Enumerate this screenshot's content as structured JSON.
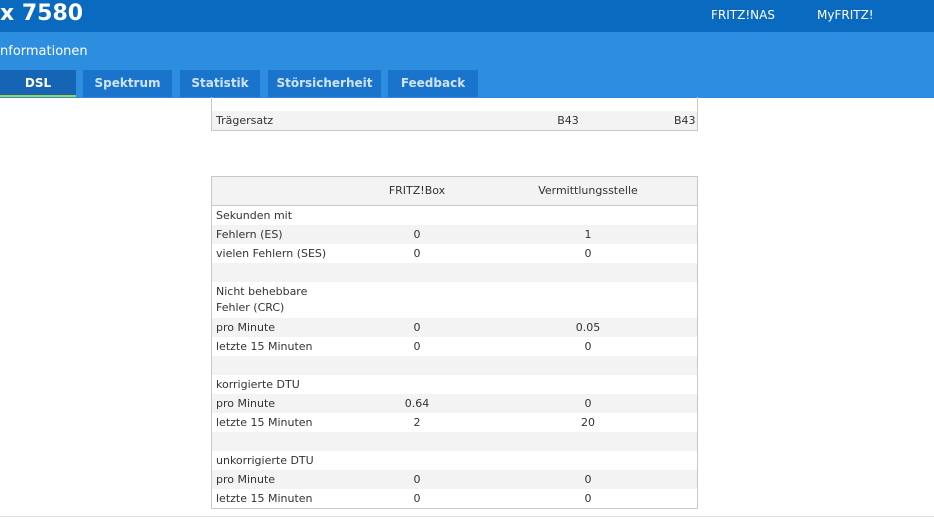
{
  "header": {
    "title": "x 7580",
    "links": [
      "FRITZ!NAS",
      "MyFRITZ!"
    ]
  },
  "subheader": {
    "title": "nformationen"
  },
  "tabs": {
    "items": [
      "DSL",
      "Spektrum",
      "Statistik",
      "Störsicherheit",
      "Feedback"
    ],
    "active": 0
  },
  "table_top": {
    "rows": [
      {
        "label": "Trägersatz",
        "fritzbox": "B43",
        "vst": "B43"
      }
    ]
  },
  "table": {
    "columns": [
      "FRITZ!Box",
      "Vermittlungsstelle"
    ],
    "rows": [
      {
        "label": "Sekunden mit"
      },
      {
        "label": "Fehlern (ES)",
        "fritzbox": "0",
        "vst": "1"
      },
      {
        "label": "vielen Fehlern (SES)",
        "fritzbox": "0",
        "vst": "0"
      },
      null,
      {
        "label": "Nicht behebbare Fehler (CRC)"
      },
      {
        "label": "pro Minute",
        "fritzbox": "0",
        "vst": "0.05"
      },
      {
        "label": "letzte 15 Minuten",
        "fritzbox": "0",
        "vst": "0"
      },
      null,
      {
        "label": "korrigierte DTU"
      },
      {
        "label": "pro Minute",
        "fritzbox": "0.64",
        "vst": "0"
      },
      {
        "label": "letzte 15 Minuten",
        "fritzbox": "2",
        "vst": "20"
      },
      null,
      {
        "label": "unkorrigierte DTU"
      },
      {
        "label": "pro Minute",
        "fritzbox": "0",
        "vst": "0"
      },
      {
        "label": "letzte 15 Minuten",
        "fritzbox": "0",
        "vst": "0"
      }
    ]
  }
}
